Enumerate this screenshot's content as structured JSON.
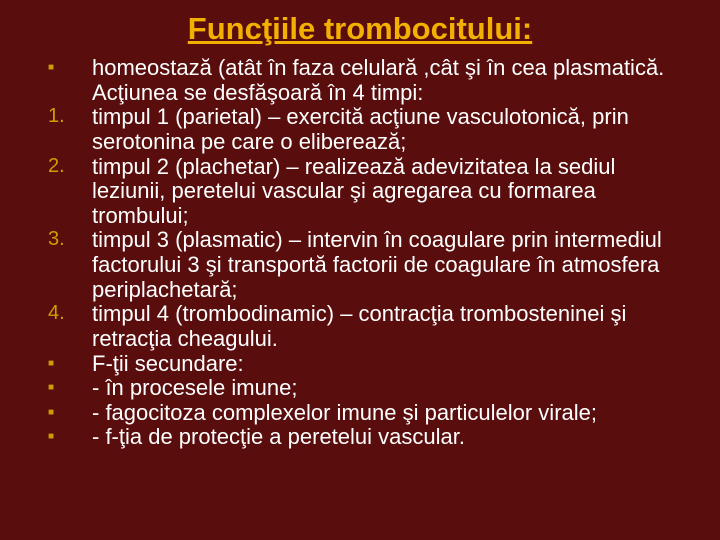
{
  "colors": {
    "background": "#5a0d0d",
    "title": "#f2b100",
    "marker": "#ce9e00",
    "text": "#ffffff"
  },
  "title": "Funcţiile trombocitului:",
  "items": [
    {
      "marker": "square",
      "text": "homeostază (atât în faza celulară ,cât şi în cea plasmatică. Acţiunea se desfăşoară în 4 timpi:"
    },
    {
      "marker": "1.",
      "text": "timpul 1 (parietal) – exercită acţiune vasculotonică, prin serotonina pe care o eliberează;"
    },
    {
      "marker": "2.",
      "text": "timpul 2 (plachetar) – realizează adevizitatea la sediul leziunii, peretelui vascular şi agregarea cu formarea trombului;"
    },
    {
      "marker": "3.",
      "text": "timpul 3 (plasmatic) – intervin în coagulare prin intermediul factorului 3 şi transportă factorii de coagulare în atmosfera periplachetară;"
    },
    {
      "marker": "4.",
      "text": "timpul 4 (trombodinamic) – contracţia trombosteninei şi retracţia cheagului."
    },
    {
      "marker": "square",
      "text": "F-ţii secundare:"
    },
    {
      "marker": "square",
      "text": "- în procesele imune;"
    },
    {
      "marker": "square",
      "text": "- fagocitoza complexelor imune şi particulelor virale;"
    },
    {
      "marker": "square",
      "text": "- f-ţia de protecţie a peretelui vascular."
    }
  ]
}
